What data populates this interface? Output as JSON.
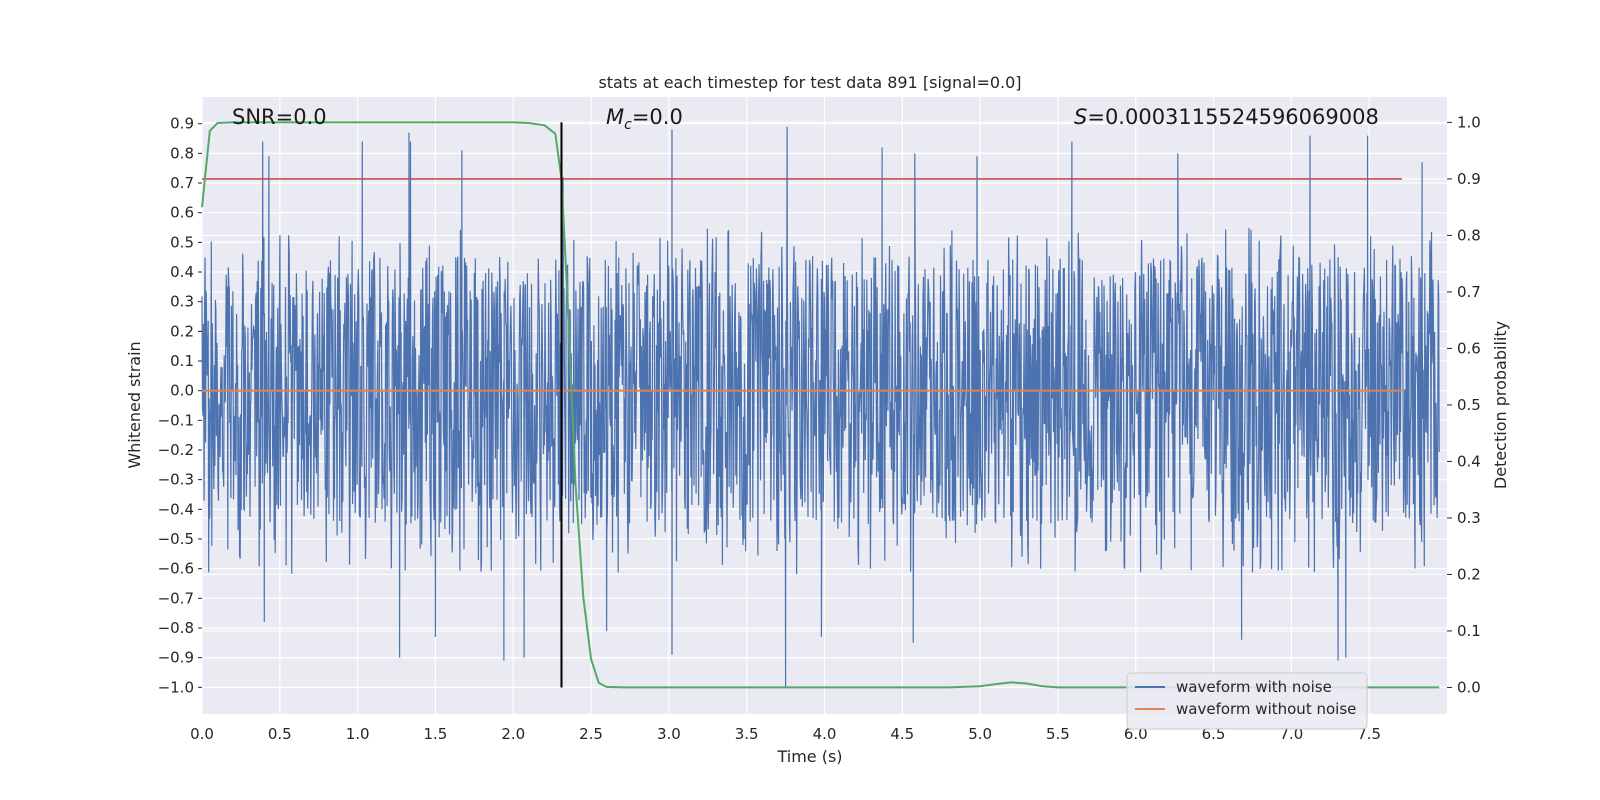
{
  "chart_data": {
    "type": "line",
    "title": "stats at each timestep for test data 891 [signal=0.0]",
    "xlabel": "Time (s)",
    "ylabel": "Whitened strain",
    "y2label": "Detection probability",
    "xlim": [
      0.0,
      8.0
    ],
    "ylim": [
      -1.09,
      0.99
    ],
    "y2lim": [
      -0.047,
      1.045
    ],
    "x_ticks": [
      "0.0",
      "0.5",
      "1.0",
      "1.5",
      "2.0",
      "2.5",
      "3.0",
      "3.5",
      "4.0",
      "4.5",
      "5.0",
      "5.5",
      "6.0",
      "6.5",
      "7.0",
      "7.5"
    ],
    "y_ticks": [
      "0.9",
      "0.8",
      "0.7",
      "0.6",
      "0.5",
      "0.4",
      "0.3",
      "0.2",
      "0.1",
      "0.0",
      "−0.1",
      "−0.2",
      "−0.3",
      "−0.4",
      "−0.5",
      "−0.6",
      "−0.7",
      "−0.8",
      "−0.9",
      "−1.0"
    ],
    "y2_ticks": [
      "1.0",
      "0.9",
      "0.8",
      "0.7",
      "0.6",
      "0.5",
      "0.4",
      "0.3",
      "0.2",
      "0.1",
      "0.0"
    ],
    "annotations": {
      "snr": "SNR=0.0",
      "mc_symbol": "M",
      "mc_sub": "c",
      "mc_value": "=0.0",
      "s_symbol": "S",
      "s_value": "=0.0003115524596069008"
    },
    "threshold_line": {
      "y2": 0.9,
      "color": "#c44e52"
    },
    "marker_line": {
      "x": 2.31,
      "color": "#000000"
    },
    "series": [
      {
        "name": "waveform with noise",
        "color": "#4c72b0",
        "description_of_envelope": "dense noise, mostly within [-0.45, 0.32]",
        "spikes_up": [
          [
            0.39,
            0.84
          ],
          [
            0.43,
            0.79
          ],
          [
            1.03,
            0.84
          ],
          [
            1.33,
            0.87
          ],
          [
            1.34,
            0.84
          ],
          [
            1.67,
            0.81
          ],
          [
            2.32,
            0.72
          ],
          [
            3.02,
            0.88
          ],
          [
            3.76,
            0.89
          ],
          [
            4.37,
            0.82
          ],
          [
            4.58,
            0.8
          ],
          [
            4.98,
            0.79
          ],
          [
            5.59,
            0.84
          ],
          [
            6.27,
            0.8
          ],
          [
            7.12,
            0.86
          ],
          [
            7.49,
            0.86
          ],
          [
            7.84,
            0.77
          ]
        ],
        "spikes_down": [
          [
            0.4,
            -0.78
          ],
          [
            1.27,
            -0.9
          ],
          [
            1.5,
            -0.83
          ],
          [
            1.94,
            -0.91
          ],
          [
            2.07,
            -0.9
          ],
          [
            2.6,
            -0.81
          ],
          [
            3.02,
            -0.89
          ],
          [
            3.75,
            -1.0
          ],
          [
            3.98,
            -0.83
          ],
          [
            4.57,
            -0.85
          ],
          [
            6.68,
            -0.84
          ],
          [
            7.3,
            -0.91
          ],
          [
            7.35,
            -0.9
          ]
        ]
      },
      {
        "name": "waveform without noise",
        "color": "#dd8452",
        "x": [
          0.0,
          8.0
        ],
        "y": [
          0.0,
          0.0
        ]
      },
      {
        "color": "#55a868",
        "axis": "y2",
        "x": [
          0.0,
          0.05,
          0.1,
          0.2,
          0.5,
          1.0,
          1.5,
          2.0,
          2.1,
          2.2,
          2.27,
          2.31,
          2.35,
          2.4,
          2.45,
          2.5,
          2.55,
          2.6,
          2.7,
          3.0,
          4.0,
          4.8,
          5.0,
          5.1,
          5.2,
          5.3,
          5.4,
          5.5,
          6.0,
          7.0,
          7.95
        ],
        "y": [
          0.85,
          0.985,
          0.999,
          1.0,
          1.0,
          1.0,
          1.0,
          1.0,
          0.999,
          0.995,
          0.98,
          0.9,
          0.68,
          0.36,
          0.16,
          0.05,
          0.008,
          0.001,
          0.0,
          0.0,
          0.0,
          0.0,
          0.002,
          0.006,
          0.009,
          0.007,
          0.002,
          0.0,
          0.0,
          0.0,
          0.0
        ]
      }
    ],
    "legend": {
      "placement": "lower-right"
    }
  }
}
